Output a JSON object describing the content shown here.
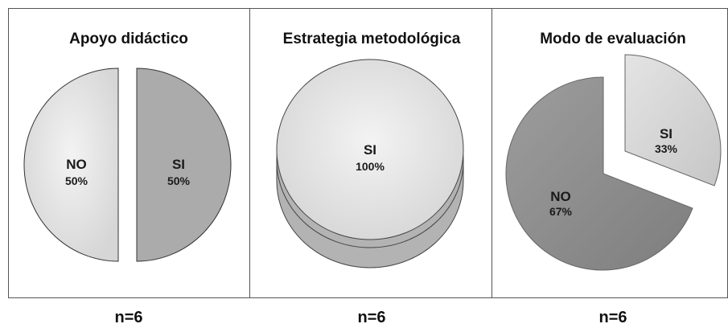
{
  "chart_data": [
    {
      "type": "pie",
      "title": "Apoyo didáctico",
      "slices": [
        {
          "label": "NO",
          "value": 50,
          "value_label": "50%",
          "color": "#dcdcdc"
        },
        {
          "label": "SI",
          "value": 50,
          "value_label": "50%",
          "color": "#ababab"
        }
      ],
      "sample": "n=6"
    },
    {
      "type": "pie",
      "title": "Estrategia metodológica",
      "slices": [
        {
          "label": "SI",
          "value": 100,
          "value_label": "100%",
          "color": "#e3e3e3"
        }
      ],
      "sample": "n=6"
    },
    {
      "type": "pie",
      "title": "Modo de evaluación",
      "slices": [
        {
          "label": "NO",
          "value": 67,
          "value_label": "67%",
          "color": "#8f8f8f"
        },
        {
          "label": "SI",
          "value": 33,
          "value_label": "33%",
          "color": "#d2d2d2"
        }
      ],
      "sample": "n=6"
    }
  ]
}
